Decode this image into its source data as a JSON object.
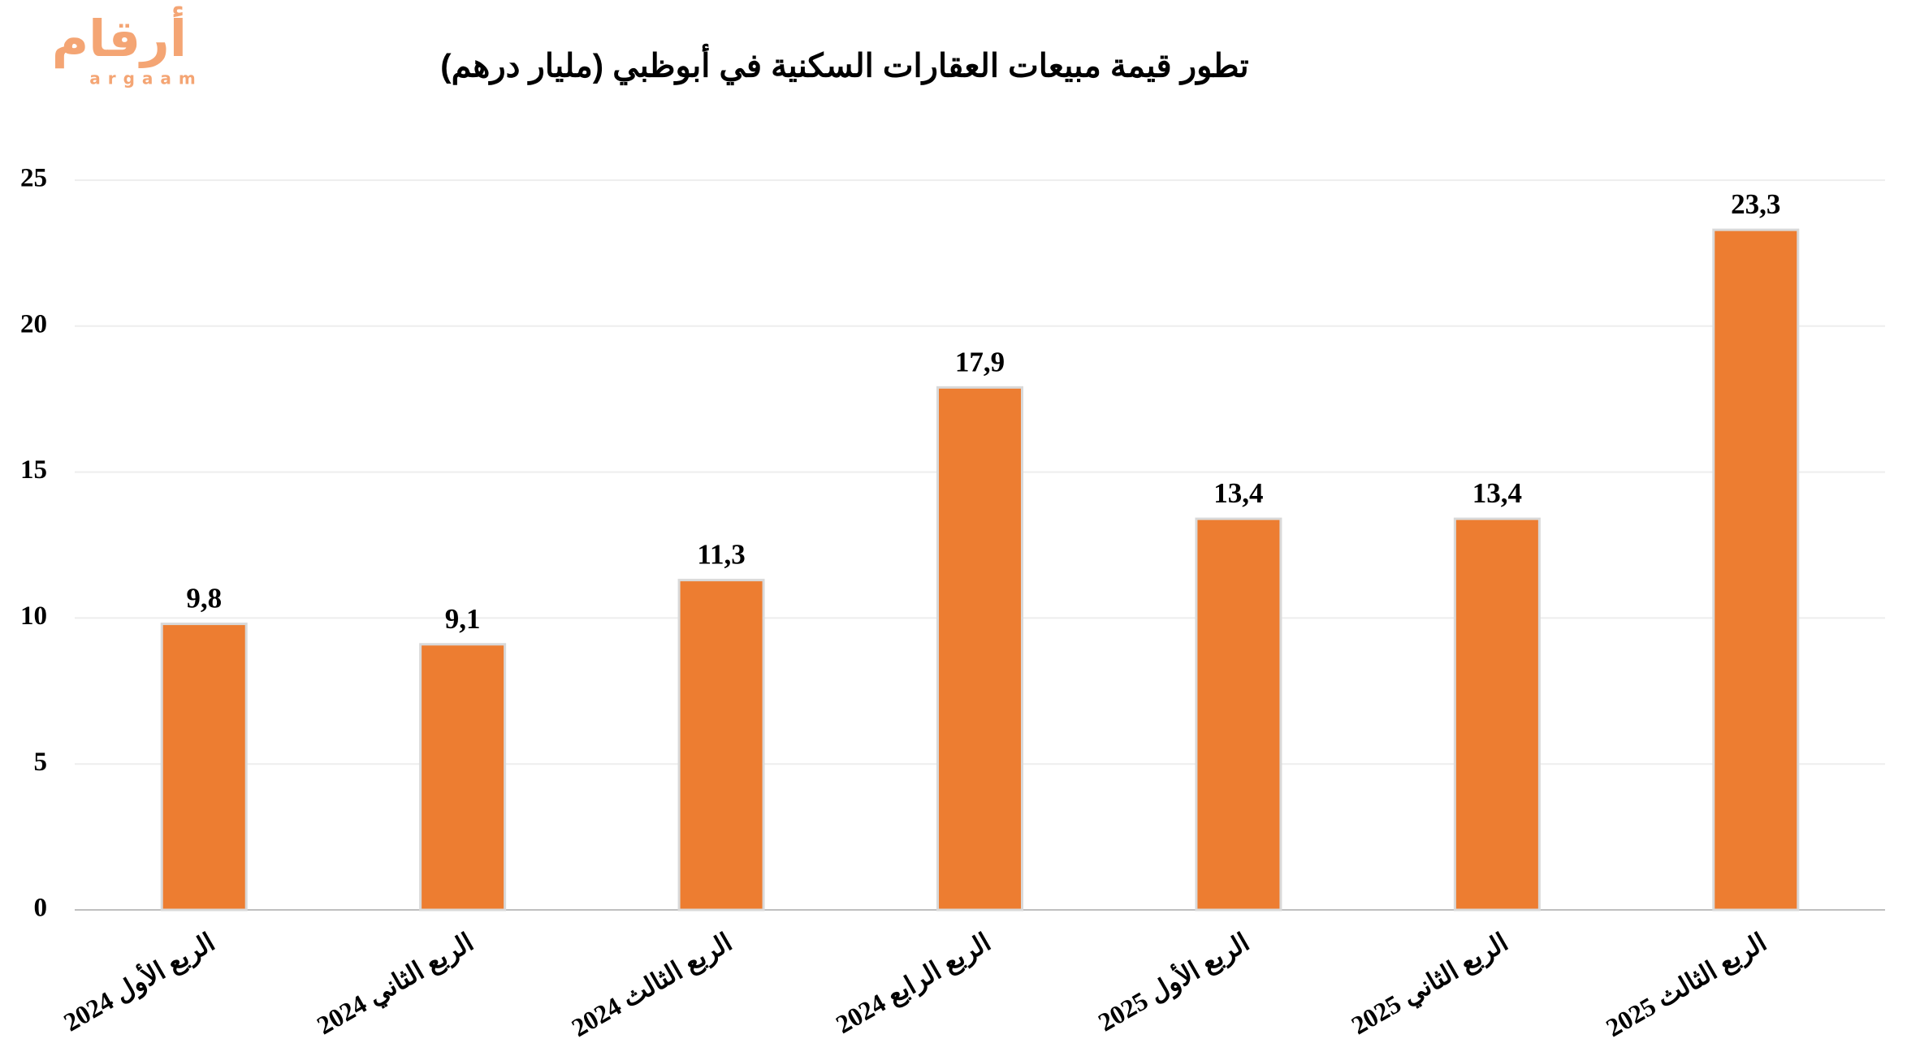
{
  "logo": {
    "name": "أرقام",
    "latin": "argaam"
  },
  "chart_data": {
    "type": "bar",
    "title": "تطور قيمة مبيعات العقارات السكنية في أبوظبي (مليار درهم)",
    "categories": [
      "الربع الأول 2024",
      "الربع الثاني 2024",
      "الربع الثالث 2024",
      "الربع الرابع 2024",
      "الربع الأول 2025",
      "الربع الثاني 2025",
      "الربع الثالث 2025"
    ],
    "values": [
      9.8,
      9.1,
      11.3,
      17.9,
      13.4,
      13.4,
      23.3
    ],
    "value_labels": [
      "9,8",
      "9,1",
      "11,3",
      "17,9",
      "13,4",
      "13,4",
      "23,3"
    ],
    "color": "#ed7d31",
    "ylim": [
      0,
      25
    ],
    "yticks": [
      0,
      5,
      10,
      15,
      20,
      25
    ],
    "grid": true
  }
}
